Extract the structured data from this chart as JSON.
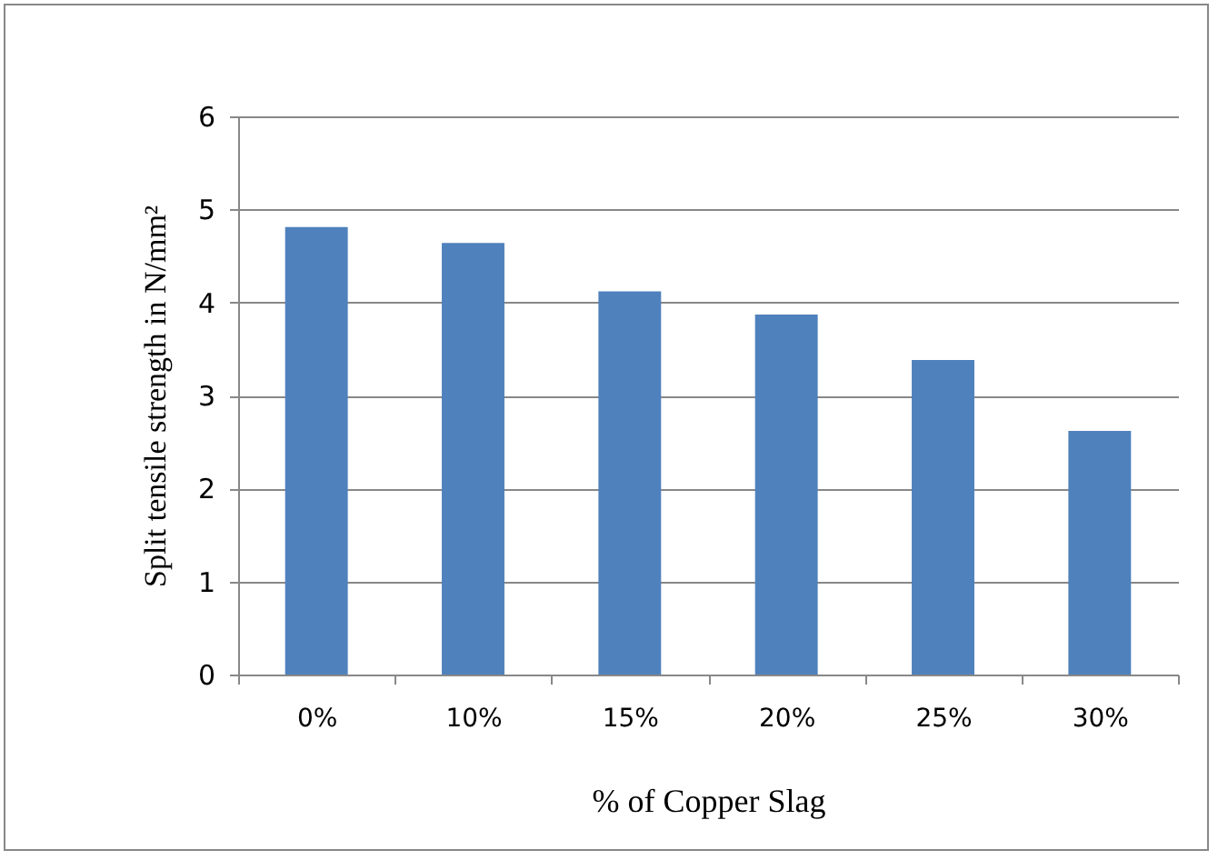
{
  "chart_data": {
    "type": "bar",
    "xlabel": "% of Copper Slag",
    "ylabel": "Split tensile strength in N/mm²",
    "categories": [
      "0%",
      "10%",
      "15%",
      "20%",
      "25%",
      "30%"
    ],
    "values": [
      4.81,
      4.64,
      4.12,
      3.87,
      3.38,
      2.62
    ],
    "color": "#4f81bd",
    "ylim": [
      0,
      6
    ],
    "yticks": [
      0,
      1,
      2,
      3,
      4,
      5,
      6
    ],
    "grid": "y"
  }
}
